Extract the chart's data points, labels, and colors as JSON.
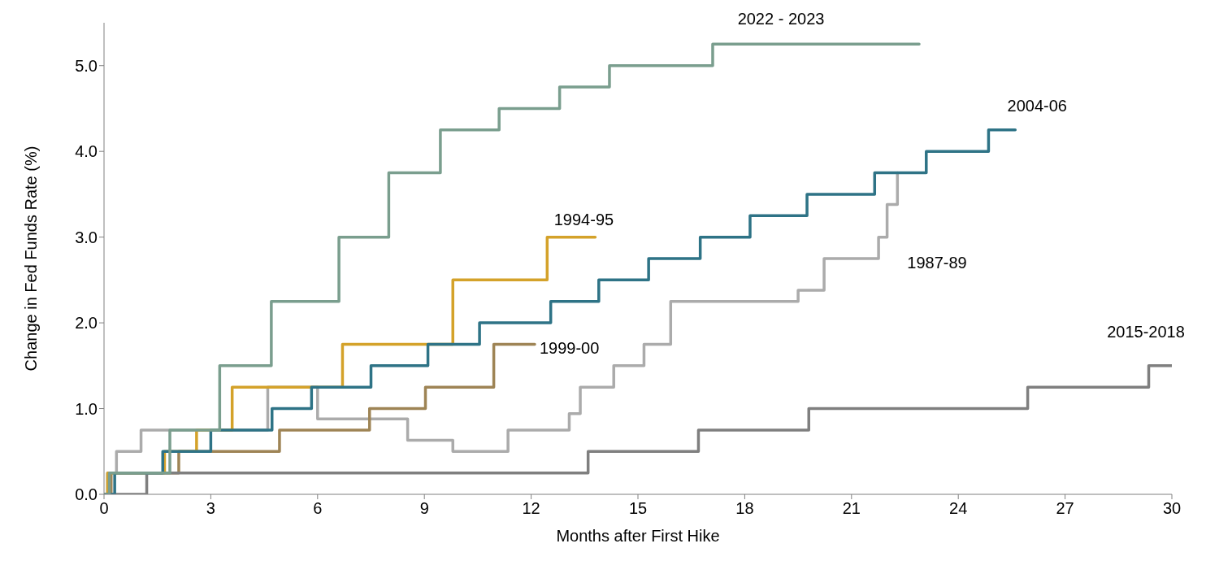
{
  "chart_data": {
    "type": "step",
    "xlabel": "Months after First Hike",
    "ylabel": "Change in Fed Funds Rate (%)",
    "xlim": [
      0,
      30
    ],
    "xticks": [
      0,
      3,
      6,
      9,
      12,
      15,
      18,
      21,
      24,
      27,
      30
    ],
    "ylim": [
      0,
      5.5
    ],
    "yticks": [
      {
        "value": 0,
        "label": "0.0"
      },
      {
        "value": 1,
        "label": "1.0"
      },
      {
        "value": 2,
        "label": "2.0"
      },
      {
        "value": 3,
        "label": "3.0"
      },
      {
        "value": 4,
        "label": "4.0"
      },
      {
        "value": 5,
        "label": "5.0"
      }
    ],
    "grid": false,
    "legend": false,
    "marker": "none",
    "line_style": "solid",
    "series": [
      {
        "name": "1987-89",
        "color": "#ababab",
        "x": [
          0,
          0.1,
          0.35,
          1.04,
          4.6,
          6.0,
          8.53,
          9.8,
          11.35,
          13.07,
          13.38,
          14.32,
          15.17,
          15.92,
          19.5,
          20.23,
          21.76,
          22.0,
          22.29
        ],
        "values": [
          0,
          0.25,
          0.5,
          0.75,
          1.25,
          0.88,
          0.63,
          0.5,
          0.75,
          0.94,
          1.25,
          1.5,
          1.75,
          2.25,
          2.38,
          2.75,
          3.0,
          3.38,
          3.75
        ]
      },
      {
        "name": "1999-00",
        "color": "#9e8455",
        "x": [
          0,
          0.2,
          2.1,
          4.93,
          7.46,
          9.03,
          10.95,
          12.1
        ],
        "values": [
          0,
          0.25,
          0.5,
          0.75,
          1.0,
          1.25,
          1.75,
          1.75
        ]
      },
      {
        "name": "1994-95",
        "color": "#d4a22a",
        "x": [
          0,
          0.1,
          1.7,
          2.6,
          3.6,
          6.7,
          9.8,
          12.45,
          13.8
        ],
        "values": [
          0,
          0.25,
          0.5,
          0.75,
          1.25,
          1.75,
          2.5,
          3.0,
          3.0
        ]
      },
      {
        "name": "2015-2018",
        "color": "#7f7f7f",
        "x": [
          0,
          1.2,
          13.6,
          16.7,
          19.8,
          25.95,
          29.35,
          30
        ],
        "values": [
          0,
          0.25,
          0.5,
          0.75,
          1.0,
          1.25,
          1.5,
          1.5
        ]
      },
      {
        "name": "2004-06",
        "color": "#2e7386",
        "x": [
          0,
          0.3,
          1.65,
          3.0,
          4.72,
          5.83,
          7.5,
          9.1,
          10.55,
          12.55,
          13.9,
          15.3,
          16.75,
          18.15,
          19.75,
          21.65,
          23.1,
          24.85,
          25.6
        ],
        "values": [
          0,
          0.25,
          0.5,
          0.75,
          1.0,
          1.25,
          1.5,
          1.75,
          2.0,
          2.25,
          2.5,
          2.75,
          3.0,
          3.25,
          3.5,
          3.75,
          4.0,
          4.25,
          4.25
        ]
      },
      {
        "name": "2022 - 2023",
        "color": "#7a9e8e",
        "x": [
          0,
          0.15,
          1.85,
          3.25,
          4.7,
          6.6,
          8.0,
          9.45,
          11.1,
          12.8,
          14.2,
          17.1,
          22.9
        ],
        "values": [
          0,
          0.25,
          0.75,
          1.5,
          2.25,
          3.0,
          3.75,
          4.25,
          4.5,
          4.75,
          5.0,
          5.25,
          5.25
        ]
      }
    ]
  }
}
